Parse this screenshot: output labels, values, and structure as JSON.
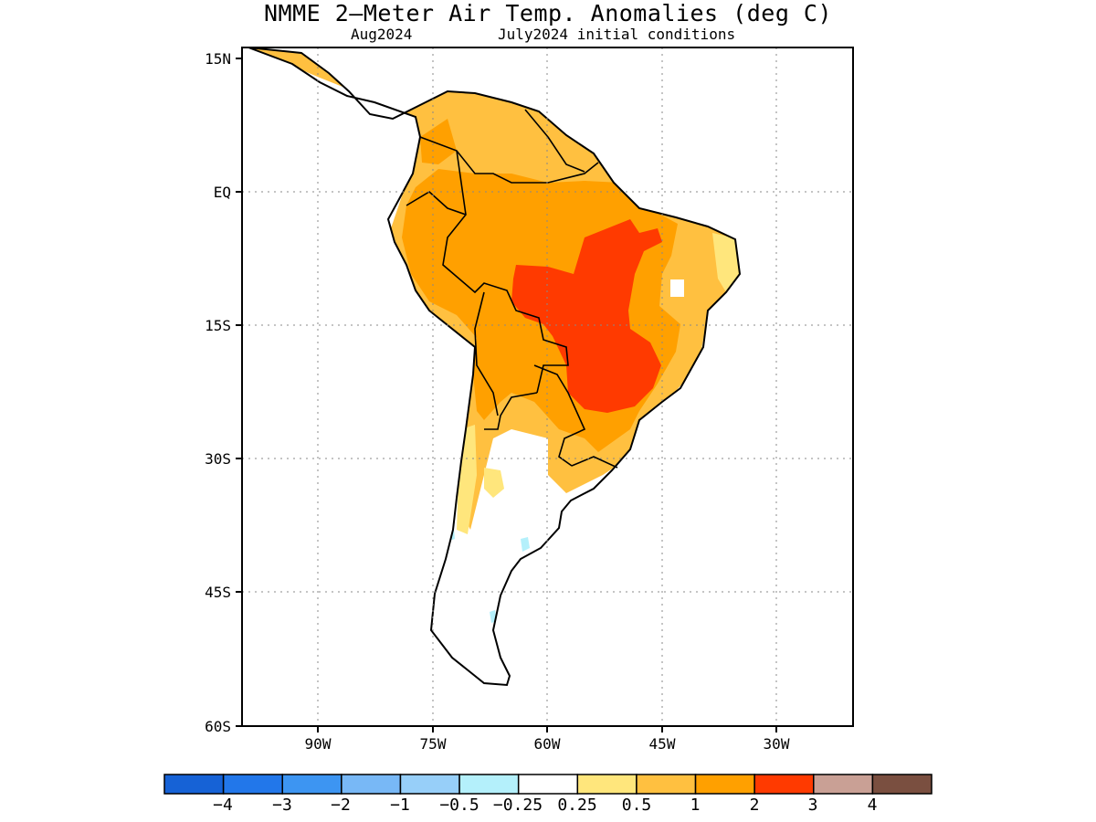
{
  "title": "NMME 2–Meter Air Temp. Anomalies (deg C)",
  "subtitle": {
    "valid_month": "Aug2024",
    "initial_conditions": "July2024 initial conditions"
  },
  "map": {
    "region": "South America",
    "lat_ticks": [
      "15N",
      "EQ",
      "15S",
      "30S",
      "45S",
      "60S"
    ],
    "lon_ticks": [
      "90W",
      "75W",
      "60W",
      "45W",
      "30W"
    ],
    "grid": "dotted"
  },
  "colorbar": {
    "colors": [
      "#1662d6",
      "#2277ea",
      "#3d95f2",
      "#78b8f6",
      "#97cff9",
      "#b4f0fb",
      "#ffffff",
      "#ffe67c",
      "#ffc040",
      "#ffa000",
      "#ff3a00",
      "#c9a095",
      "#7a4f40"
    ],
    "labels": [
      "−4",
      "−3",
      "−2",
      "−1",
      "−0.5",
      "−0.25",
      "0.25",
      "0.5",
      "1",
      "2",
      "3",
      "4"
    ]
  }
}
